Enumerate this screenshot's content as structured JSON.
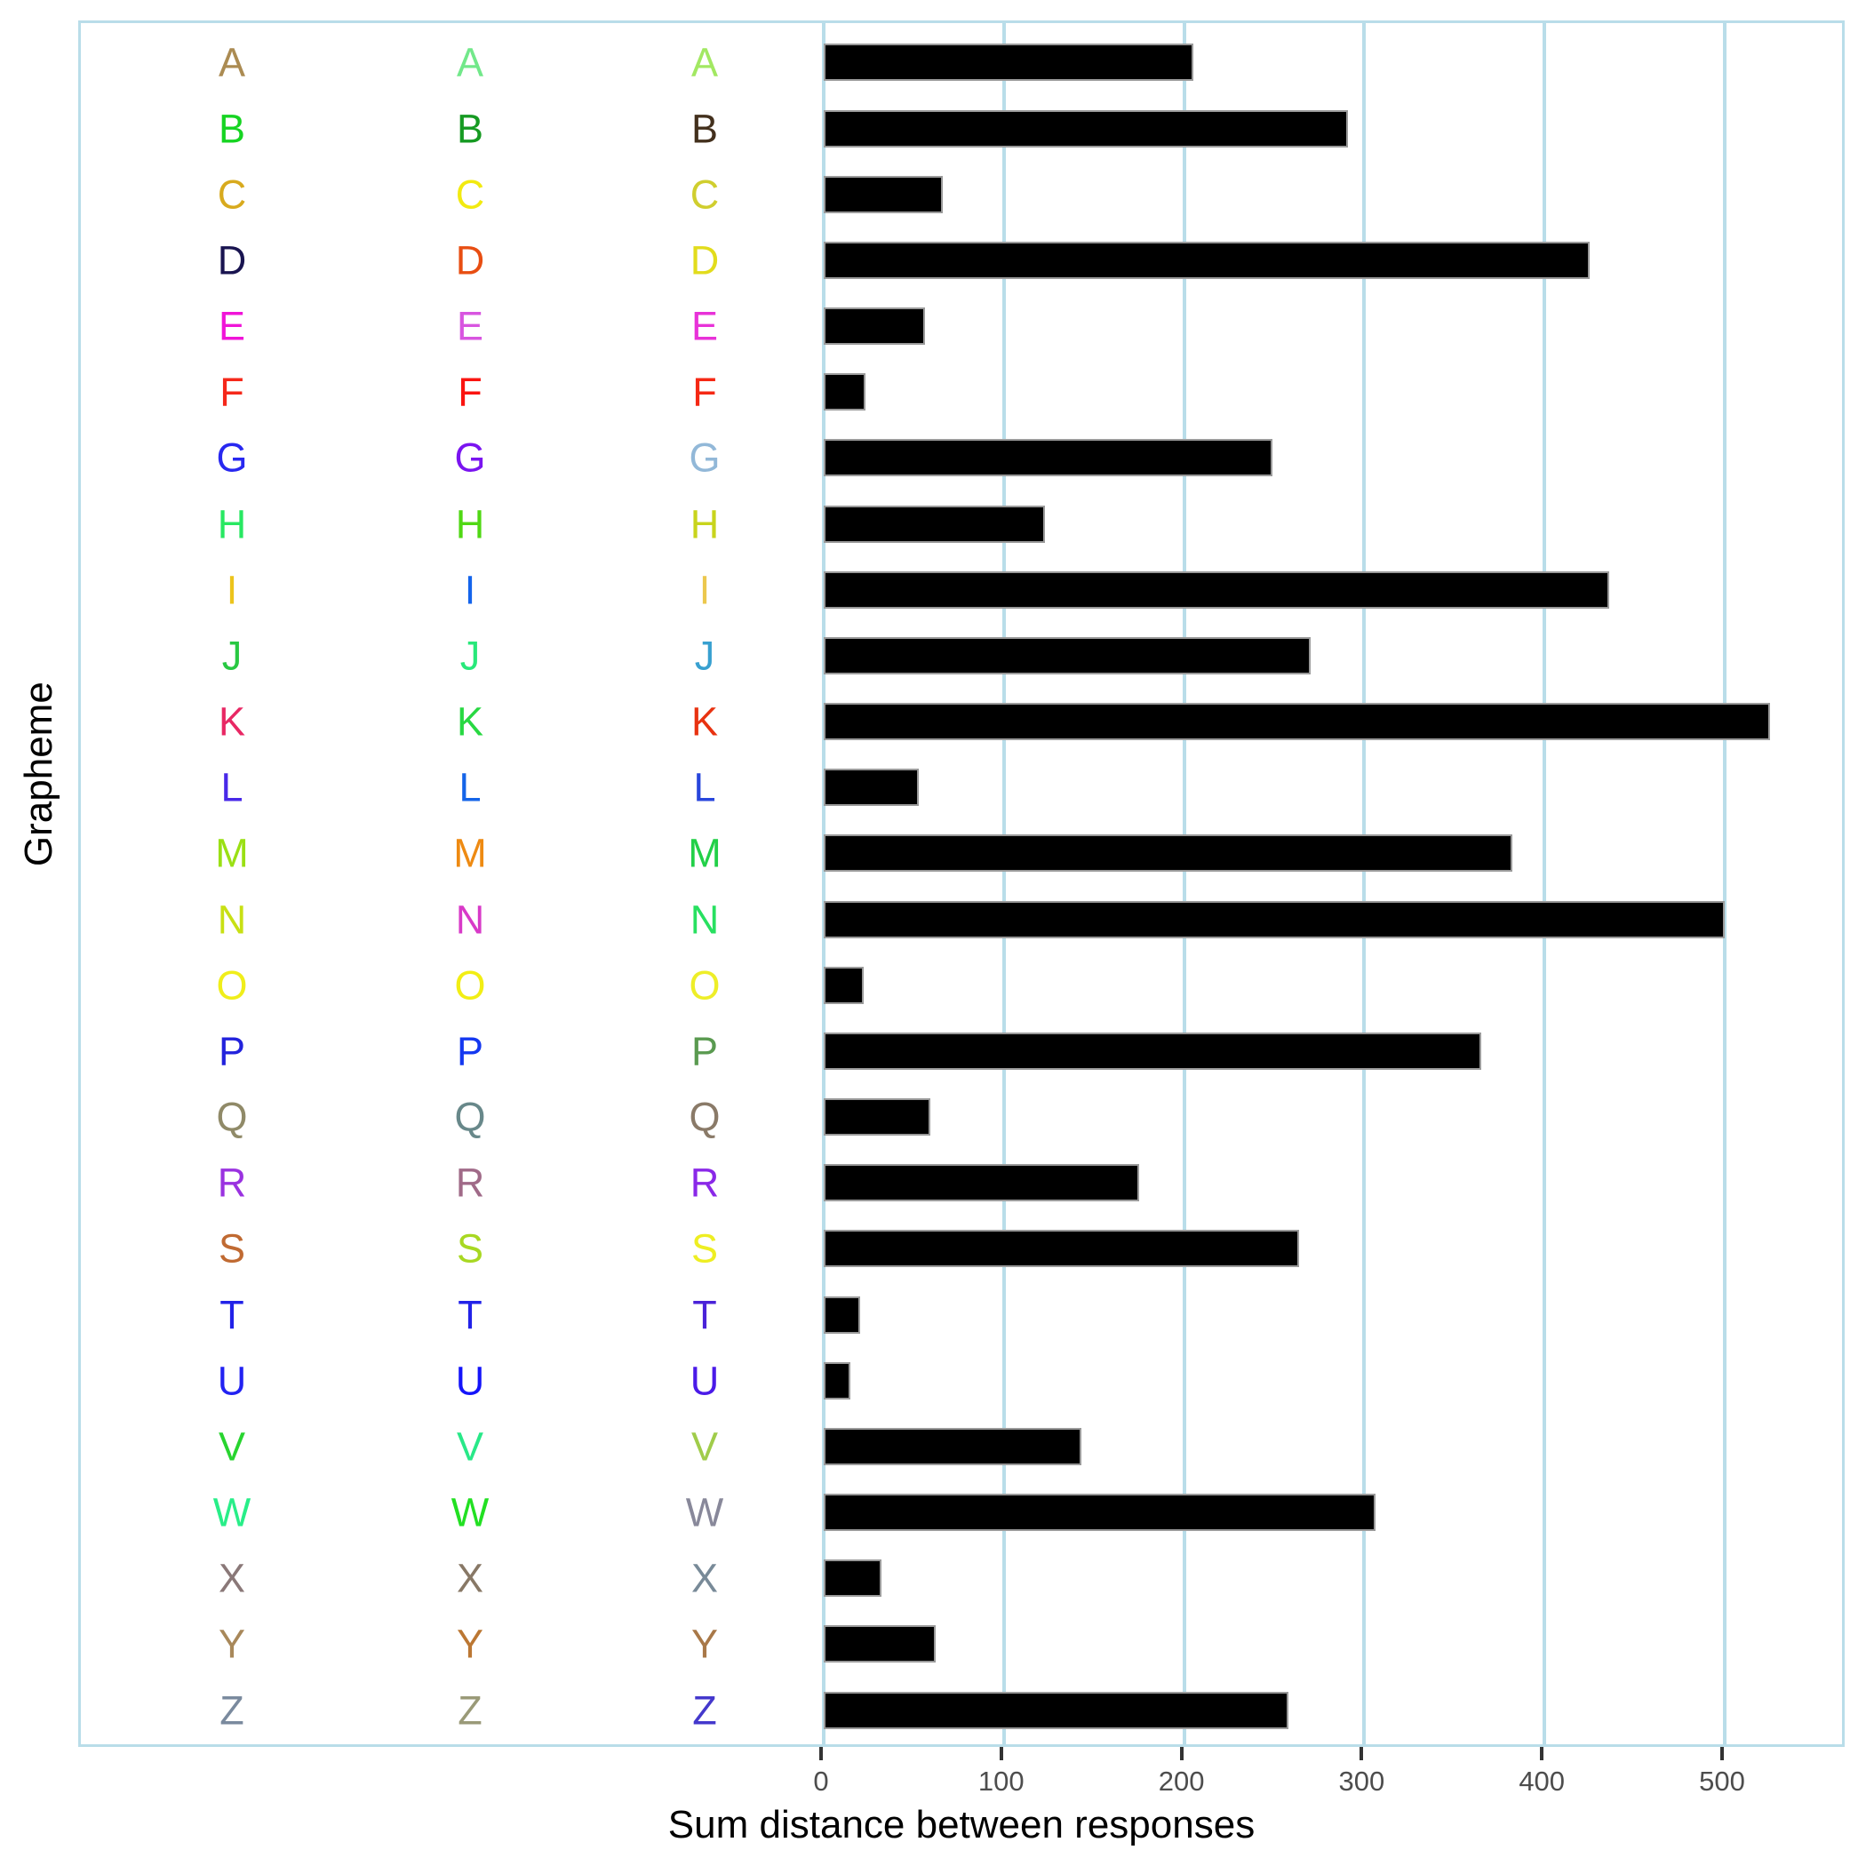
{
  "axes": {
    "x_title": "Sum distance between responses",
    "y_title": "Grapheme",
    "x_tick_labels": [
      "0",
      "100",
      "200",
      "300",
      "400",
      "500"
    ]
  },
  "style": {
    "panel_border_color": "#b9dde9",
    "grid_color": "#b9dde9",
    "bar_fill": "#000000",
    "bar_border": "#9a9a9a",
    "tick_mark_color": "#333333",
    "tick_label_color": "#4d4d4d",
    "axis_title_color": "#000000",
    "background": "#ffffff"
  },
  "chart_data": {
    "type": "bar",
    "orientation": "horizontal",
    "title": "",
    "xlabel": "Sum distance between responses",
    "ylabel": "Grapheme",
    "xlim": [
      0,
      570
    ],
    "x_tick_values": [
      0,
      100,
      200,
      300,
      400,
      500
    ],
    "grid": true,
    "legend": false,
    "bar_color": "#000000",
    "categories": [
      "A",
      "B",
      "C",
      "D",
      "E",
      "F",
      "G",
      "H",
      "I",
      "J",
      "K",
      "L",
      "M",
      "N",
      "O",
      "P",
      "Q",
      "R",
      "S",
      "T",
      "U",
      "V",
      "W",
      "X",
      "Y",
      "Z"
    ],
    "values": [
      205,
      291,
      66,
      425,
      56,
      23,
      249,
      123,
      436,
      270,
      525,
      53,
      382,
      500,
      22,
      365,
      59,
      175,
      264,
      20,
      15,
      143,
      306,
      32,
      62,
      258
    ],
    "letter_colors": [
      [
        "#ab8b52",
        "#72e88a",
        "#a2e862"
      ],
      [
        "#16d422",
        "#169a22",
        "#43301d"
      ],
      [
        "#d8aa1e",
        "#f2ea10",
        "#d0ce2e"
      ],
      [
        "#191450",
        "#e84e12",
        "#e2dc1c"
      ],
      [
        "#f014d8",
        "#d855e0",
        "#e832d8"
      ],
      [
        "#f5281a",
        "#fa1410",
        "#f52814"
      ],
      [
        "#2828f0",
        "#7a14f0",
        "#92b8d8"
      ],
      [
        "#28e862",
        "#50d814",
        "#c8d41c"
      ],
      [
        "#ecc41c",
        "#1464ec",
        "#ecc84e"
      ],
      [
        "#28c842",
        "#28e87a",
        "#38a0d0"
      ],
      [
        "#e82864",
        "#28d842",
        "#e83210"
      ],
      [
        "#4828e8",
        "#1464e8",
        "#2846dc"
      ],
      [
        "#9ae014",
        "#ee8a12",
        "#22d048"
      ],
      [
        "#c8e014",
        "#d83ac8",
        "#28e060"
      ],
      [
        "#f0ee1a",
        "#f2ee14",
        "#eeee28"
      ],
      [
        "#2222dc",
        "#1438f0",
        "#5a9a50"
      ],
      [
        "#908a68",
        "#68888a",
        "#8a7a68"
      ],
      [
        "#9a32e0",
        "#a06a88",
        "#8a28e8"
      ],
      [
        "#c06a32",
        "#a8d822",
        "#eeee22"
      ],
      [
        "#2222e8",
        "#2222e8",
        "#4a22d8"
      ],
      [
        "#2222f2",
        "#1414fa",
        "#4a1ae8"
      ],
      [
        "#28d42f",
        "#28e888",
        "#a0cc4a"
      ],
      [
        "#28ee88",
        "#22e022",
        "#88889a"
      ],
      [
        "#8a7878",
        "#887866",
        "#788a98"
      ],
      [
        "#a8885a",
        "#bb7733",
        "#a87848"
      ],
      [
        "#7a8a9e",
        "#9a9a78",
        "#4438cc"
      ]
    ]
  }
}
